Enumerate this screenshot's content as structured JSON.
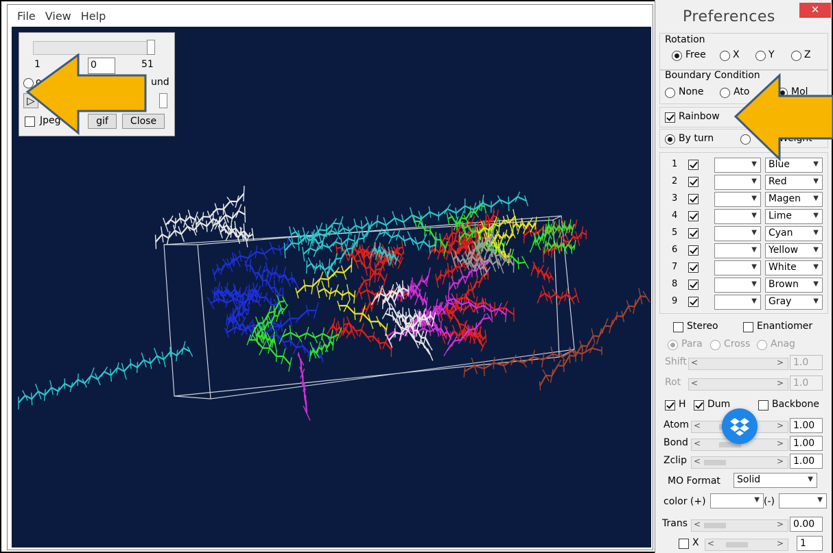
{
  "menubar": {
    "items": [
      "File",
      "View",
      "Help"
    ]
  },
  "animation_dialog": {
    "slider_min": "1",
    "slider_max": "51",
    "frame_value": "0",
    "radio_left_label": "on",
    "radio_right_label": "und",
    "play_glyph": "▷",
    "jpeg_label": "Jpeg",
    "gif_label": "gif",
    "close_label": "Close"
  },
  "preferences": {
    "title": "Preferences",
    "close_glyph": "✕",
    "rotation_label": "Rotation",
    "rotation_options": [
      "Free",
      "X",
      "Y",
      "Z"
    ],
    "rotation_selected": "Free",
    "boundary_label": "Boundary Condition",
    "boundary_options": [
      "None",
      "Ato",
      "Mol"
    ],
    "rainbow_label": "Rainbow",
    "by_turn_label": "By turn",
    "by_weight_label": "Weight",
    "color_rows": [
      {
        "index": "1",
        "color": "Blue"
      },
      {
        "index": "2",
        "color": "Red"
      },
      {
        "index": "3",
        "color": "Magen"
      },
      {
        "index": "4",
        "color": "Lime"
      },
      {
        "index": "5",
        "color": "Cyan"
      },
      {
        "index": "6",
        "color": "Yellow"
      },
      {
        "index": "7",
        "color": "White"
      },
      {
        "index": "8",
        "color": "Brown"
      },
      {
        "index": "9",
        "color": "Gray"
      }
    ],
    "stereo_label": "Stereo",
    "enantiomer_label": "Enantiomer",
    "stereo_modes": [
      "Para",
      "Cross",
      "Anag"
    ],
    "shift_label": "Shift",
    "shift_value": "1.0",
    "rot_label": "Rot",
    "rot_value": "1.0",
    "h_label": "H",
    "dum_label": "Dum",
    "backbone_label": "Backbone",
    "atom_label": "Atom",
    "atom_value": "1.00",
    "bond_label": "Bond",
    "bond_value": "1.00",
    "zclip_label": "Zclip",
    "zclip_value": "1.00",
    "mo_format_label": "MO Format",
    "mo_format_value": "Solid",
    "color_plus_label": "color (+)",
    "color_minus_label": "(-)",
    "trans_label": "Trans",
    "trans_value": "0.00",
    "x_label": "X",
    "x_value": "1"
  },
  "colors": {
    "viewport_bg": "#0b1b40",
    "arrow_fill": "#f7b500",
    "arrow_outline": "#3d5a80",
    "close_red": "#e04343",
    "dropbox_blue": "#1e86e8"
  },
  "molecule_palette": [
    "#1f2fd9",
    "#e0201a",
    "#d62fd6",
    "#35e030",
    "#2ec7c9",
    "#e7e42a",
    "#e8e8e8",
    "#a6432d",
    "#9a9a9a"
  ]
}
